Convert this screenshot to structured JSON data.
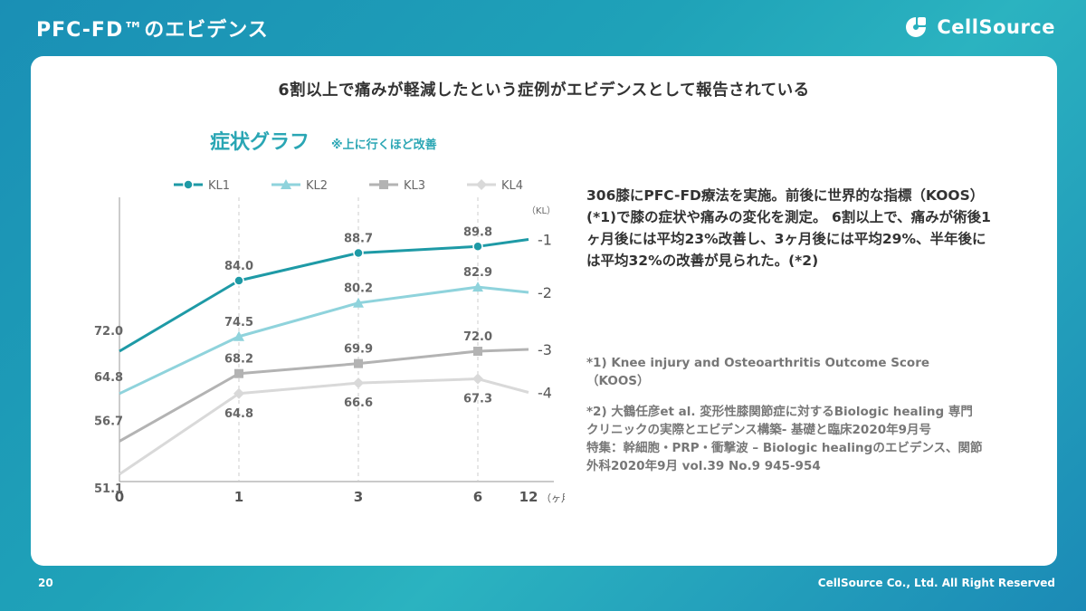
{
  "header": {
    "title": "PFC-FD™のエビデンス",
    "logo_text": "CellSource"
  },
  "card": {
    "headline": "6割以上で痛みが軽減したという症例がエビデンスとして報告されている",
    "summary": "306膝にPFC-FD療法を実施。前後に世界的な指標（KOOS）(*1)で膝の症状や痛みの変化を測定。 6割以上で、痛みが術後1ヶ月後には平均23%改善し、3ヶ月後には平均29%、半年後には平均32%の改善が見られた。(*2)",
    "note1": "*1) Knee injury and Osteoarthritis Outcome Score（KOOS）",
    "note2_line1": "*2) 大鶴任彦et al. 変形性膝関節症に対するBiologic healing 専門クリニックの実際とエビデンス構築- 基礎と臨床2020年9月号",
    "note2_line2": "特集：幹細胞・PRP・衝撃波 – Biologic healingのエビデンス、関節外科2020年9月 vol.39 No.9 945-954"
  },
  "footer": {
    "page_number": "20",
    "copyright": "CellSource Co., Ltd. All Right Reserved"
  },
  "colors": {
    "kl1": "#1e9aa6",
    "kl2": "#8fd3dc",
    "kl3": "#b3b3b3",
    "kl4": "#d9d9d9",
    "title_teal": "#2aa6b4"
  },
  "chart_data": {
    "type": "line",
    "title": "症状グラフ",
    "subtitle": "※上に行くほど改善",
    "x": [
      0,
      1,
      3,
      6,
      12
    ],
    "x_ticks": [
      "0",
      "1",
      "3",
      "6",
      "12"
    ],
    "x_unit": "（ヶ月）",
    "right_axis_label": "（KL）",
    "legend_position": "top",
    "grid": "vertical dashed at x=1,3,6",
    "series": [
      {
        "name": "KL1",
        "marker": "circle",
        "end_label": "-1",
        "values": [
          72.0,
          84.0,
          88.7,
          89.8,
          91.0
        ],
        "labels": [
          "72.0",
          "84.0",
          "88.7",
          "89.8",
          ""
        ]
      },
      {
        "name": "KL2",
        "marker": "triangle",
        "end_label": "-2",
        "values": [
          64.8,
          74.5,
          80.2,
          82.9,
          82.0
        ],
        "labels": [
          "64.8",
          "74.5",
          "80.2",
          "82.9",
          ""
        ]
      },
      {
        "name": "KL3",
        "marker": "square",
        "end_label": "-3",
        "values": [
          56.7,
          68.2,
          69.9,
          72.0,
          72.3
        ],
        "labels": [
          "56.7",
          "68.2",
          "69.9",
          "72.0",
          ""
        ]
      },
      {
        "name": "KL4",
        "marker": "diamond",
        "end_label": "-4",
        "values": [
          51.1,
          64.8,
          66.6,
          67.3,
          65.0
        ],
        "labels": [
          "51.1",
          "64.8",
          "66.6",
          "67.3",
          ""
        ]
      }
    ]
  }
}
